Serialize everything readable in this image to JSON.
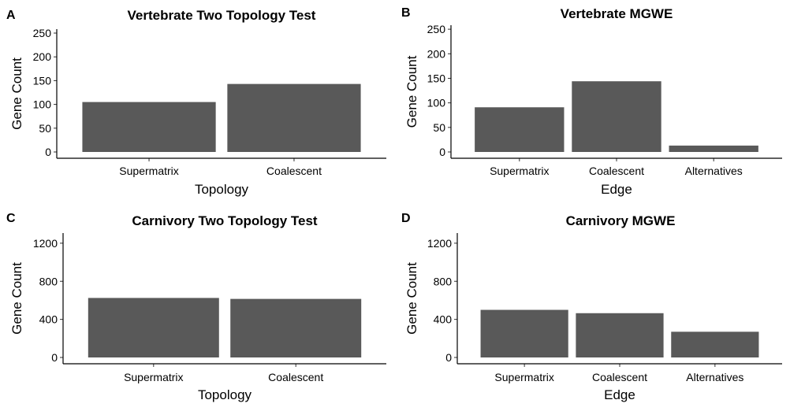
{
  "chart_data": [
    {
      "id": "A",
      "panel_label": "A",
      "type": "bar",
      "title": "Vertebrate Two Topology Test",
      "xlabel": "Topology",
      "ylabel": "Gene Count",
      "categories": [
        "Supermatrix",
        "Coalescent"
      ],
      "values": [
        105,
        143
      ],
      "ylim": [
        0,
        255
      ],
      "yticks": [
        0,
        50,
        100,
        150,
        200,
        250
      ],
      "color": "#595959"
    },
    {
      "id": "B",
      "panel_label": "B",
      "type": "bar",
      "title": "Vertebrate MGWE",
      "xlabel": "Edge",
      "ylabel": "Gene Count",
      "categories": [
        "Supermatrix",
        "Coalescent",
        "Alternatives"
      ],
      "values": [
        91,
        144,
        13
      ],
      "ylim": [
        0,
        255
      ],
      "yticks": [
        0,
        50,
        100,
        150,
        200,
        250
      ],
      "color": "#595959"
    },
    {
      "id": "C",
      "panel_label": "C",
      "type": "bar",
      "title": "Carnivory Two Topology Test",
      "xlabel": "Topology",
      "ylabel": "Gene Count",
      "categories": [
        "Supermatrix",
        "Coalescent"
      ],
      "values": [
        625,
        615
      ],
      "ylim": [
        0,
        1290
      ],
      "yticks": [
        0,
        400,
        800,
        1200
      ],
      "color": "#595959"
    },
    {
      "id": "D",
      "panel_label": "D",
      "type": "bar",
      "title": "Carnivory MGWE",
      "xlabel": "Edge",
      "ylabel": "Gene Count",
      "categories": [
        "Supermatrix",
        "Coalescent",
        "Alternatives"
      ],
      "values": [
        500,
        465,
        270
      ],
      "ylim": [
        0,
        1290
      ],
      "yticks": [
        0,
        400,
        800,
        1200
      ],
      "color": "#595959"
    }
  ]
}
